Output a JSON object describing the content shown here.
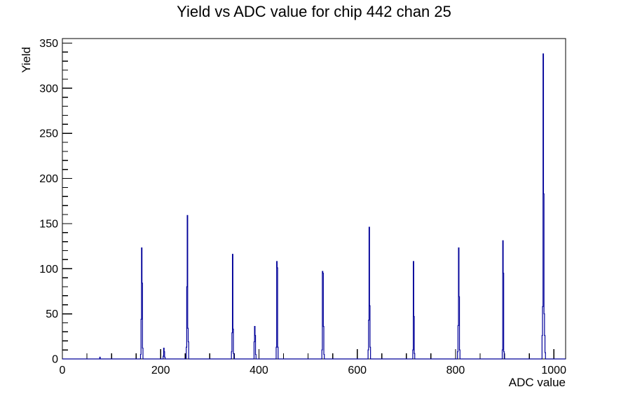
{
  "title": "Yield vs ADC value for chip 442 chan 25",
  "background_color": "#ffffff",
  "chart_data": {
    "type": "bar",
    "style": "root-histogram-step-outline",
    "title": "Yield vs ADC value for chip 442 chan 25",
    "xlabel": "ADC value",
    "ylabel": "Yield",
    "xlim": [
      0,
      1024
    ],
    "ylim": [
      0,
      355
    ],
    "x_ticks_major": [
      0,
      200,
      400,
      600,
      800,
      1000
    ],
    "x_minor_step": 50,
    "y_ticks_major": [
      0,
      50,
      100,
      150,
      200,
      250,
      300,
      350
    ],
    "y_minor_step": 10,
    "grid": "off",
    "legend": "none",
    "line_color": "#000099",
    "axis_color": "#000000",
    "bins_format": [
      "adc_value",
      "yield"
    ],
    "bins": [
      [
        76,
        2
      ],
      [
        159,
        5
      ],
      [
        160,
        44
      ],
      [
        161,
        123
      ],
      [
        162,
        84
      ],
      [
        163,
        12
      ],
      [
        205,
        3
      ],
      [
        206,
        12
      ],
      [
        207,
        8
      ],
      [
        208,
        2
      ],
      [
        252,
        13
      ],
      [
        253,
        80
      ],
      [
        254,
        159
      ],
      [
        255,
        34
      ],
      [
        256,
        19
      ],
      [
        344,
        8
      ],
      [
        345,
        29
      ],
      [
        346,
        116
      ],
      [
        347,
        33
      ],
      [
        348,
        6
      ],
      [
        390,
        19
      ],
      [
        391,
        36
      ],
      [
        392,
        26
      ],
      [
        393,
        5
      ],
      [
        435,
        13
      ],
      [
        436,
        108
      ],
      [
        437,
        101
      ],
      [
        438,
        13
      ],
      [
        528,
        10
      ],
      [
        529,
        97
      ],
      [
        530,
        95
      ],
      [
        531,
        36
      ],
      [
        532,
        5
      ],
      [
        622,
        10
      ],
      [
        623,
        43
      ],
      [
        624,
        146
      ],
      [
        625,
        59
      ],
      [
        626,
        13
      ],
      [
        713,
        10
      ],
      [
        714,
        108
      ],
      [
        715,
        47
      ],
      [
        716,
        6
      ],
      [
        804,
        8
      ],
      [
        805,
        37
      ],
      [
        806,
        123
      ],
      [
        807,
        69
      ],
      [
        808,
        10
      ],
      [
        895,
        10
      ],
      [
        896,
        131
      ],
      [
        897,
        95
      ],
      [
        898,
        8
      ],
      [
        976,
        26
      ],
      [
        977,
        58
      ],
      [
        978,
        338
      ],
      [
        979,
        183
      ],
      [
        980,
        50
      ],
      [
        981,
        26
      ],
      [
        982,
        7
      ]
    ]
  }
}
